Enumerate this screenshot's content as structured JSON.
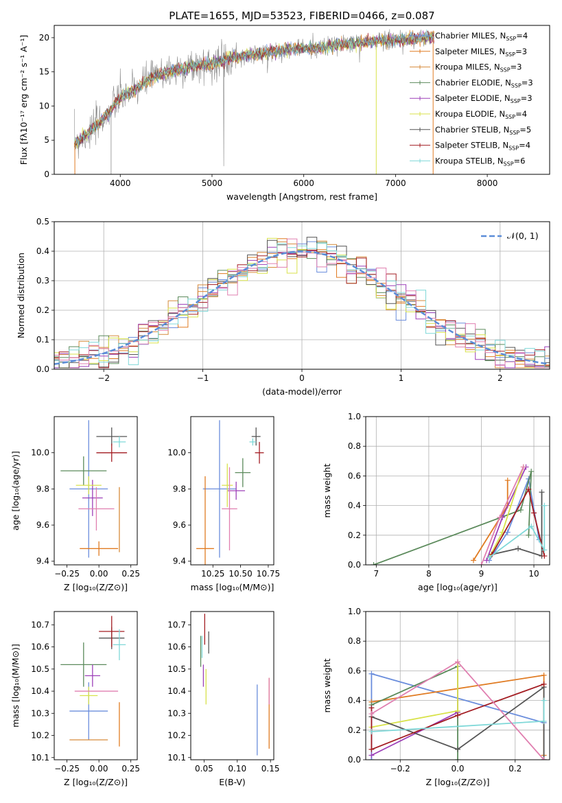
{
  "title": "PLATE=1655, MJD=53523, FIBERID=0466, z=0.087",
  "models": [
    {
      "name": "Chabrier MILES",
      "nssp": "4",
      "color": "#6a8ddc"
    },
    {
      "name": "Salpeter MILES",
      "nssp": "3",
      "color": "#e07b22"
    },
    {
      "name": "Kroupa MILES",
      "nssp": "3",
      "color": "#d68a3a"
    },
    {
      "name": "Chabrier ELODIE",
      "nssp": "3",
      "color": "#5b8a5b"
    },
    {
      "name": "Salpeter ELODIE",
      "nssp": "3",
      "color": "#9c3fb8"
    },
    {
      "name": "Kroupa ELODIE",
      "nssp": "4",
      "color": "#d8e24a"
    },
    {
      "name": "Chabrier STELIB",
      "nssp": "5",
      "color": "#555555"
    },
    {
      "name": "Salpeter STELIB",
      "nssp": "4",
      "color": "#a31c22"
    },
    {
      "name": "Kroupa STELIB",
      "nssp": "6",
      "color": "#7fd8d8"
    }
  ],
  "nssp_label": "N",
  "nssp_sub": "SSP",
  "chart_data": [
    {
      "id": "spectrum",
      "type": "line",
      "xlabel": "wavelength [Angstrom, rest frame]",
      "ylabel": "Flux [fλ10⁻¹⁷ erg cm⁻² s⁻¹ A⁻¹]",
      "xlim": [
        3280,
        8680
      ],
      "ylim": [
        0,
        21.8
      ],
      "xticks": [
        4000,
        5000,
        6000,
        7000,
        8000
      ],
      "yticks": [
        0,
        5,
        10,
        15,
        20
      ],
      "grid": false,
      "legend": "upper right",
      "continuum": [
        [
          3500,
          4.5
        ],
        [
          3600,
          5.5
        ],
        [
          3700,
          6.5
        ],
        [
          3800,
          8
        ],
        [
          3900,
          9.5
        ],
        [
          3950,
          10.5
        ],
        [
          4000,
          11.2
        ],
        [
          4100,
          12
        ],
        [
          4200,
          12.8
        ],
        [
          4300,
          13.8
        ],
        [
          4400,
          14.5
        ],
        [
          4600,
          15.2
        ],
        [
          4800,
          15.8
        ],
        [
          5000,
          16.2
        ],
        [
          5200,
          17
        ],
        [
          5400,
          17.5
        ],
        [
          5600,
          17.8
        ],
        [
          5800,
          18.2
        ],
        [
          6000,
          18.5
        ],
        [
          6200,
          18.5
        ],
        [
          6400,
          19
        ],
        [
          6600,
          19.2
        ],
        [
          6800,
          19.5
        ],
        [
          7000,
          19.7
        ],
        [
          7200,
          19.8
        ],
        [
          7400,
          20
        ]
      ],
      "data_end": 7420
    },
    {
      "id": "residuals",
      "type": "histogram",
      "xlabel": "(data-model)/error",
      "ylabel": "Normed distribution",
      "xlim": [
        -2.5,
        2.5
      ],
      "ylim": [
        0,
        0.5
      ],
      "xticks": [
        -2,
        -1,
        0,
        1,
        2
      ],
      "xtick_labels": [
        "−2",
        "−1",
        "0",
        "1",
        "2"
      ],
      "yticks": [
        0,
        0.1,
        0.2,
        0.3,
        0.4,
        0.5
      ],
      "ytick_labels": [
        "0.0",
        "0.1",
        "0.2",
        "0.3",
        "0.4",
        "0.5"
      ],
      "grid": true,
      "bin_width": 0.1,
      "reference_curve": "𝒩(0, 1)",
      "reference_color": "#5b8dd8",
      "legend": "upper right"
    },
    {
      "id": "age_vs_Z",
      "type": "errorbar",
      "xlabel": "Z [log₁₀(Z/Z⊙)]",
      "ylabel": "age  [log₁₀(age/yr)]",
      "xlim": [
        -0.35,
        0.3
      ],
      "ylim": [
        9.38,
        10.2
      ],
      "xticks": [
        -0.25,
        0,
        0.25
      ],
      "xtick_labels": [
        "−0.25",
        "0.00",
        "0.25"
      ],
      "yticks": [
        9.4,
        9.6,
        9.8,
        10.0
      ],
      "ytick_labels": [
        "9.4",
        "9.6",
        "9.8",
        "10.0"
      ],
      "grid": false,
      "points": [
        {
          "x": -0.08,
          "xerr": 0.15,
          "y": 9.8,
          "yerr": 0.38,
          "series": "Chabrier MILES"
        },
        {
          "x": 0.0,
          "xerr": 0.15,
          "y": 9.47,
          "yerr": 0.04,
          "series": "Salpeter MILES"
        },
        {
          "x": 0.16,
          "xerr": 0.0,
          "y": 9.63,
          "yerr": 0.18,
          "series": "Kroupa MILES"
        },
        {
          "x": -0.12,
          "xerr": 0.18,
          "y": 9.9,
          "yerr": 0.08,
          "series": "Chabrier ELODIE"
        },
        {
          "x": -0.05,
          "xerr": 0.08,
          "y": 9.75,
          "yerr": 0.1,
          "series": "Salpeter ELODIE"
        },
        {
          "x": -0.08,
          "xerr": 0.1,
          "y": 9.82,
          "yerr": 0.05,
          "series": "Kroupa ELODIE"
        },
        {
          "x": 0.1,
          "xerr": 0.12,
          "y": 10.09,
          "yerr": 0.05,
          "series": "Chabrier STELIB"
        },
        {
          "x": 0.1,
          "xerr": 0.12,
          "y": 10.0,
          "yerr": 0.05,
          "series": "Salpeter STELIB"
        },
        {
          "x": 0.16,
          "xerr": 0.05,
          "y": 10.06,
          "yerr": 0.03,
          "series": "Kroupa STELIB"
        },
        {
          "x": -0.02,
          "xerr": 0.14,
          "y": 9.69,
          "yerr": 0.12,
          "series": "Kroupa STELIB",
          "color": "#e07fb0"
        }
      ]
    },
    {
      "id": "age_vs_mass",
      "type": "errorbar",
      "xlabel": "mass [log₁₀(M/M⊙)]",
      "ylabel": "",
      "xlim": [
        10.05,
        10.8
      ],
      "ylim": [
        9.38,
        10.2
      ],
      "xticks": [
        10.25,
        10.5,
        10.75
      ],
      "xtick_labels": [
        "10.25",
        "10.50",
        "10.75"
      ],
      "yticks": [
        9.4,
        9.6,
        9.8,
        10.0
      ],
      "ytick_labels": [
        "9.4",
        "9.6",
        "9.8",
        "10.0"
      ],
      "grid": false,
      "points": [
        {
          "x": 10.31,
          "xerr": 0.15,
          "y": 9.8,
          "yerr": 0.38,
          "series": "Chabrier MILES"
        },
        {
          "x": 10.18,
          "xerr": 0.08,
          "y": 9.47,
          "yerr": 0.4,
          "series": "Salpeter MILES"
        },
        {
          "x": 10.46,
          "xerr": 0.08,
          "y": 9.79,
          "yerr": 0.05,
          "series": "Salpeter ELODIE"
        },
        {
          "x": 10.52,
          "xerr": 0.07,
          "y": 9.89,
          "yerr": 0.08,
          "series": "Chabrier ELODIE"
        },
        {
          "x": 10.38,
          "xerr": 0.05,
          "y": 9.82,
          "yerr": 0.12,
          "series": "Kroupa ELODIE"
        },
        {
          "x": 10.64,
          "xerr": 0.04,
          "y": 10.09,
          "yerr": 0.05,
          "series": "Chabrier STELIB"
        },
        {
          "x": 10.67,
          "xerr": 0.04,
          "y": 10.0,
          "yerr": 0.06,
          "series": "Salpeter STELIB"
        },
        {
          "x": 10.61,
          "xerr": 0.03,
          "y": 10.06,
          "yerr": 0.02,
          "series": "Kroupa STELIB"
        },
        {
          "x": 10.4,
          "xerr": 0.07,
          "y": 9.69,
          "yerr": 0.23,
          "series": "Kroupa STELIB",
          "color": "#e07fb0"
        }
      ]
    },
    {
      "id": "weight_vs_age",
      "type": "line",
      "xlabel": "age  [log₁₀(age/yr)]",
      "ylabel": "mass weight",
      "xlim": [
        6.8,
        10.3
      ],
      "ylim": [
        0,
        1.0
      ],
      "xticks": [
        7,
        8,
        9,
        10
      ],
      "yticks": [
        0,
        0.2,
        0.4,
        0.6,
        0.8,
        1.0
      ],
      "ytick_labels": [
        "0.0",
        "0.2",
        "0.4",
        "0.6",
        "0.8",
        "1.0"
      ],
      "grid": true,
      "series": [
        {
          "name": "Chabrier MILES",
          "x": [
            9.15,
            9.5,
            9.9,
            10.1
          ],
          "y": [
            0.03,
            0.22,
            0.58,
            0.17
          ]
        },
        {
          "name": "Salpeter MILES",
          "x": [
            8.85,
            9.5,
            9.5
          ],
          "y": [
            0.03,
            0.4,
            0.57
          ]
        },
        {
          "name": "Chabrier ELODIE",
          "x": [
            6.95,
            9.75,
            9.95,
            9.9
          ],
          "y": [
            0.0,
            0.37,
            0.63,
            0.2
          ]
        },
        {
          "name": "Salpeter ELODIE",
          "x": [
            9.1,
            9.4,
            9.85
          ],
          "y": [
            0.03,
            0.32,
            0.66
          ]
        },
        {
          "name": "Kroupa ELODIE",
          "x": [
            9.15,
            9.4,
            9.8
          ],
          "y": [
            0.05,
            0.22,
            0.66
          ]
        },
        {
          "name": "Chabrier STELIB",
          "x": [
            9.2,
            9.7,
            10.15,
            10.15
          ],
          "y": [
            0.07,
            0.11,
            0.06,
            0.49
          ]
        },
        {
          "name": "Salpeter STELIB",
          "x": [
            9.2,
            9.9,
            10.0,
            10.2
          ],
          "y": [
            0.07,
            0.51,
            0.35,
            0.06
          ]
        },
        {
          "name": "Kroupa STELIB",
          "x": [
            9.15,
            9.95,
            10.2,
            10.2
          ],
          "y": [
            0.05,
            0.26,
            0.1,
            0.4
          ]
        },
        {
          "name": "Kroupa STELIB",
          "color": "#e07fb0",
          "x": [
            9.0,
            9.35,
            9.8
          ],
          "y": [
            0.0,
            0.32,
            0.66
          ]
        }
      ]
    },
    {
      "id": "mass_vs_Z",
      "type": "errorbar",
      "xlabel": "Z [log₁₀(Z/Z⊙)]",
      "ylabel": "mass [log₁₀(M/M⊙)]",
      "xlim": [
        -0.35,
        0.3
      ],
      "ylim": [
        10.09,
        10.76
      ],
      "xticks": [
        -0.25,
        0,
        0.25
      ],
      "xtick_labels": [
        "−0.25",
        "0.00",
        "0.25"
      ],
      "yticks": [
        10.1,
        10.2,
        10.3,
        10.4,
        10.5,
        10.6,
        10.7
      ],
      "ytick_labels": [
        "10.1",
        "10.2",
        "10.3",
        "10.4",
        "10.5",
        "10.6",
        "10.7"
      ],
      "grid": false,
      "points": [
        {
          "x": -0.08,
          "xerr": 0.15,
          "y": 10.31,
          "yerr": 0.13,
          "series": "Chabrier MILES"
        },
        {
          "x": 0.16,
          "xerr": 0.0,
          "y": 10.25,
          "yerr": 0.1,
          "series": "Salpeter MILES"
        },
        {
          "x": -0.08,
          "xerr": 0.15,
          "y": 10.18,
          "yerr": 0.0,
          "series": "Kroupa MILES"
        },
        {
          "x": -0.12,
          "xerr": 0.18,
          "y": 10.52,
          "yerr": 0.1,
          "series": "Chabrier ELODIE"
        },
        {
          "x": -0.05,
          "xerr": 0.06,
          "y": 10.47,
          "yerr": 0.05,
          "series": "Salpeter ELODIE"
        },
        {
          "x": -0.08,
          "xerr": 0.07,
          "y": 10.38,
          "yerr": 0.04,
          "series": "Kroupa ELODIE"
        },
        {
          "x": 0.1,
          "xerr": 0.1,
          "y": 10.64,
          "yerr": 0.05,
          "series": "Chabrier STELIB"
        },
        {
          "x": 0.1,
          "xerr": 0.1,
          "y": 10.67,
          "yerr": 0.07,
          "series": "Salpeter STELIB"
        },
        {
          "x": 0.16,
          "xerr": 0.05,
          "y": 10.61,
          "yerr": 0.07,
          "series": "Kroupa STELIB"
        },
        {
          "x": -0.02,
          "xerr": 0.17,
          "y": 10.4,
          "yerr": 0.0,
          "series": "Kroupa STELIB",
          "color": "#e07fb0"
        }
      ]
    },
    {
      "id": "mass_vs_ebv",
      "type": "errorbar",
      "xlabel": "E(B-V)",
      "ylabel": "",
      "xlim": [
        0.03,
        0.155
      ],
      "ylim": [
        10.09,
        10.76
      ],
      "xticks": [
        0.05,
        0.1,
        0.15
      ],
      "xtick_labels": [
        "0.05",
        "0.10",
        "0.15"
      ],
      "yticks": [
        10.1,
        10.2,
        10.3,
        10.4,
        10.5,
        10.6,
        10.7
      ],
      "ytick_labels": [
        "10.1",
        "10.2",
        "10.3",
        "10.4",
        "10.5",
        "10.6",
        "10.7"
      ],
      "grid": false,
      "points": [
        {
          "x": 0.13,
          "xerr": 0,
          "y": 10.27,
          "yerr": 0.16,
          "series": "Chabrier MILES"
        },
        {
          "x": 0.148,
          "xerr": 0,
          "y": 10.3,
          "yerr": 0.16,
          "series": "Salpeter MILES"
        },
        {
          "x": 0.045,
          "xerr": 0,
          "y": 10.58,
          "yerr": 0.07,
          "series": "Chabrier ELODIE"
        },
        {
          "x": 0.049,
          "xerr": 0,
          "y": 10.47,
          "yerr": 0.05,
          "series": "Salpeter ELODIE"
        },
        {
          "x": 0.053,
          "xerr": 0,
          "y": 10.42,
          "yerr": 0.08,
          "series": "Kroupa ELODIE"
        },
        {
          "x": 0.057,
          "xerr": 0,
          "y": 10.62,
          "yerr": 0.05,
          "series": "Chabrier STELIB"
        },
        {
          "x": 0.051,
          "xerr": 0,
          "y": 10.68,
          "yerr": 0.07,
          "series": "Salpeter STELIB"
        },
        {
          "x": 0.047,
          "xerr": 0,
          "y": 10.6,
          "yerr": 0.05,
          "series": "Kroupa STELIB"
        },
        {
          "x": 0.148,
          "xerr": 0,
          "y": 10.4,
          "yerr": 0.06,
          "series": "Kroupa STELIB",
          "color": "#e07fb0"
        }
      ]
    },
    {
      "id": "weight_vs_Z",
      "type": "line",
      "xlabel": "Z [log₁₀(Z/Z⊙)]",
      "ylabel": "mass weight",
      "xlim": [
        -0.32,
        0.32
      ],
      "ylim": [
        0,
        1.0
      ],
      "xticks": [
        -0.2,
        0,
        0.2
      ],
      "xtick_labels": [
        "−0.2",
        "0.0",
        "0.2"
      ],
      "yticks": [
        0,
        0.2,
        0.4,
        0.6,
        0.8,
        1.0
      ],
      "ytick_labels": [
        "0.0",
        "0.2",
        "0.4",
        "0.6",
        "0.8",
        "1.0"
      ],
      "grid": true,
      "series": [
        {
          "name": "Chabrier MILES",
          "x": [
            -0.3,
            -0.3,
            0.3,
            0.3
          ],
          "y": [
            0.0,
            0.58,
            0.25,
            0.0
          ]
        },
        {
          "name": "Salpeter MILES",
          "x": [
            -0.3,
            0.3,
            0.3
          ],
          "y": [
            0.39,
            0.57,
            0.03
          ]
        },
        {
          "name": "Chabrier ELODIE",
          "x": [
            -0.3,
            0.0,
            0.0
          ],
          "y": [
            0.37,
            0.63,
            0.0
          ]
        },
        {
          "name": "Salpeter ELODIE",
          "x": [
            -0.3,
            0.0,
            0.0
          ],
          "y": [
            0.03,
            0.32,
            0.66
          ]
        },
        {
          "name": "Kroupa ELODIE",
          "x": [
            -0.3,
            0.0,
            0.0
          ],
          "y": [
            0.22,
            0.33,
            0.66
          ]
        },
        {
          "name": "Chabrier STELIB",
          "x": [
            -0.3,
            0.0,
            0.3,
            0.3
          ],
          "y": [
            0.29,
            0.07,
            0.49,
            0.0
          ]
        },
        {
          "name": "Salpeter STELIB",
          "x": [
            -0.3,
            -0.3,
            0.0,
            0.3
          ],
          "y": [
            0.35,
            0.07,
            0.3,
            0.51
          ]
        },
        {
          "name": "Kroupa STELIB",
          "x": [
            -0.3,
            0.3,
            0.3
          ],
          "y": [
            0.19,
            0.26,
            0.4
          ]
        },
        {
          "name": "Kroupa STELIB",
          "color": "#e07fb0",
          "x": [
            -0.3,
            0.0,
            0.3
          ],
          "y": [
            0.31,
            0.66,
            0.0
          ]
        }
      ]
    }
  ]
}
